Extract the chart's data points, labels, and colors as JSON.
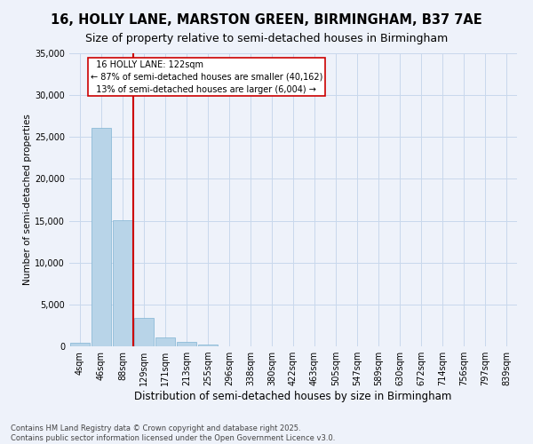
{
  "title": "16, HOLLY LANE, MARSTON GREEN, BIRMINGHAM, B37 7AE",
  "subtitle": "Size of property relative to semi-detached houses in Birmingham",
  "xlabel": "Distribution of semi-detached houses by size in Birmingham",
  "ylabel": "Number of semi-detached properties",
  "property_label": "16 HOLLY LANE: 122sqm",
  "pct_smaller": 87,
  "pct_larger": 13,
  "count_smaller": 40162,
  "count_larger": 6004,
  "categories": [
    "4sqm",
    "46sqm",
    "88sqm",
    "129sqm",
    "171sqm",
    "213sqm",
    "255sqm",
    "296sqm",
    "338sqm",
    "380sqm",
    "422sqm",
    "463sqm",
    "505sqm",
    "547sqm",
    "589sqm",
    "630sqm",
    "672sqm",
    "714sqm",
    "756sqm",
    "797sqm",
    "839sqm"
  ],
  "values": [
    400,
    26100,
    15100,
    3350,
    1050,
    480,
    200,
    0,
    0,
    0,
    0,
    0,
    0,
    0,
    0,
    0,
    0,
    0,
    0,
    0,
    0
  ],
  "bar_color": "#b8d4e8",
  "bar_edgecolor": "#7fb3d3",
  "vline_color": "#cc0000",
  "vline_x_index": 2,
  "annotation_box_color": "#cc0000",
  "background_color": "#eef2fa",
  "grid_color": "#c8d8ec",
  "ylim": [
    0,
    35000
  ],
  "yticks": [
    0,
    5000,
    10000,
    15000,
    20000,
    25000,
    30000,
    35000
  ],
  "footer": "Contains HM Land Registry data © Crown copyright and database right 2025.\nContains public sector information licensed under the Open Government Licence v3.0.",
  "title_fontsize": 10.5,
  "subtitle_fontsize": 9,
  "xlabel_fontsize": 8.5,
  "ylabel_fontsize": 7.5,
  "tick_fontsize": 7,
  "annotation_fontsize": 7,
  "footer_fontsize": 6
}
